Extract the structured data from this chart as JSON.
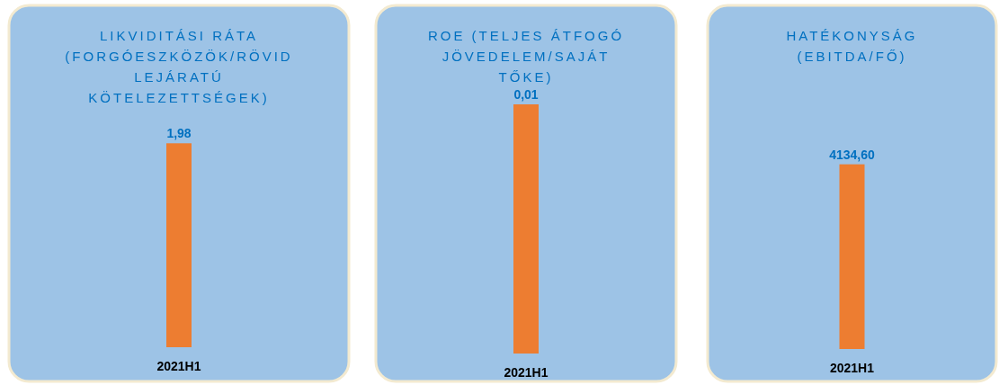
{
  "chart_data": [
    {
      "type": "bar",
      "title": "LIKVIDITÁSI RÁTA (FORGÓESZKÖZÖK/RÖVID LEJÁRATÚ KÖTELEZETTSÉGEK)",
      "categories": [
        "2021H1"
      ],
      "values": [
        1.98
      ],
      "value_labels": [
        "1,98"
      ],
      "color": "#ed7d31"
    },
    {
      "type": "bar",
      "title": "ROE (TELJES ÁTFOGÓ JÖVEDELEM/SAJÁT TŐKE)",
      "categories": [
        "2021H1"
      ],
      "values": [
        0.01
      ],
      "value_labels": [
        "0,01"
      ],
      "color": "#ed7d31"
    },
    {
      "type": "bar",
      "title": "HATÉKONYSÁG (EBITDA/FŐ)",
      "categories": [
        "2021H1"
      ],
      "values": [
        4134.6
      ],
      "value_labels": [
        "4134,60"
      ],
      "color": "#ed7d31"
    }
  ]
}
